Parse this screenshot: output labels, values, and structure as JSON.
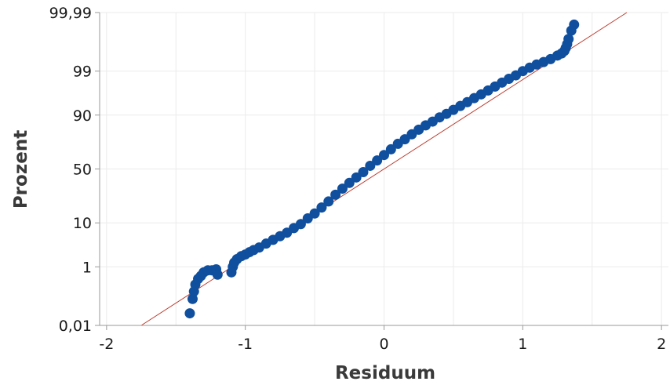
{
  "chart_data": {
    "type": "scatter",
    "title": "",
    "xlabel": "Residuum",
    "ylabel": "Prozent",
    "y_scale": "normal-probability",
    "xlim": [
      -2.05,
      2.05
    ],
    "x_ticks": [
      {
        "value": -2,
        "label": "-2"
      },
      {
        "value": -1,
        "label": "-1"
      },
      {
        "value": 0,
        "label": "0"
      },
      {
        "value": 1,
        "label": "1"
      },
      {
        "value": 2,
        "label": "2"
      }
    ],
    "y_ticks": [
      {
        "value": 0.01,
        "label": "0,01"
      },
      {
        "value": 1,
        "label": "1"
      },
      {
        "value": 10,
        "label": "10"
      },
      {
        "value": 50,
        "label": "50"
      },
      {
        "value": 90,
        "label": "90"
      },
      {
        "value": 99,
        "label": "99"
      },
      {
        "value": 99.99,
        "label": "99,99"
      }
    ],
    "grid": true,
    "colors": {
      "points": "#0f4f9e",
      "fit_line": "#c0392b",
      "grid": "#ebebeb",
      "axis": "#9a9a9a"
    },
    "fit_line": {
      "x": [
        -1.75,
        1.75
      ],
      "percent": [
        0.01,
        99.99
      ]
    },
    "series": [
      {
        "x": [
          -1.4,
          -1.38,
          -1.37,
          -1.36,
          -1.34,
          -1.32,
          -1.3,
          -1.27,
          -1.24,
          -1.21,
          -1.2,
          -1.1,
          -1.09,
          -1.08,
          -1.06,
          -1.03,
          -1.0,
          -0.97,
          -0.94,
          -0.9,
          -0.85,
          -0.8,
          -0.75,
          -0.7,
          -0.65,
          -0.6,
          -0.55,
          -0.5,
          -0.45,
          -0.4,
          -0.35,
          -0.3,
          -0.25,
          -0.2,
          -0.15,
          -0.1,
          -0.05,
          0.0,
          0.05,
          0.1,
          0.15,
          0.2,
          0.25,
          0.3,
          0.35,
          0.4,
          0.45,
          0.5,
          0.55,
          0.6,
          0.65,
          0.7,
          0.75,
          0.8,
          0.85,
          0.9,
          0.95,
          1.0,
          1.05,
          1.1,
          1.15,
          1.2,
          1.25,
          1.28,
          1.3,
          1.31,
          1.32,
          1.33,
          1.35,
          1.37
        ],
        "percent": [
          0.03,
          0.1,
          0.18,
          0.3,
          0.45,
          0.55,
          0.7,
          0.8,
          0.8,
          0.85,
          0.6,
          0.7,
          1.0,
          1.3,
          1.6,
          1.9,
          2.1,
          2.4,
          2.7,
          3.1,
          3.8,
          4.6,
          5.5,
          6.5,
          8.0,
          9.5,
          12.0,
          14.5,
          18.0,
          22.0,
          27.0,
          32.0,
          37.0,
          42.0,
          47.0,
          53.0,
          58.0,
          63.0,
          68.0,
          72.5,
          76.0,
          79.5,
          82.5,
          85.0,
          87.0,
          89.0,
          90.5,
          92.0,
          93.3,
          94.4,
          95.4,
          96.2,
          96.9,
          97.5,
          98.0,
          98.4,
          98.7,
          99.0,
          99.2,
          99.35,
          99.45,
          99.55,
          99.65,
          99.7,
          99.75,
          99.8,
          99.85,
          99.9,
          99.95,
          99.97
        ]
      }
    ]
  }
}
